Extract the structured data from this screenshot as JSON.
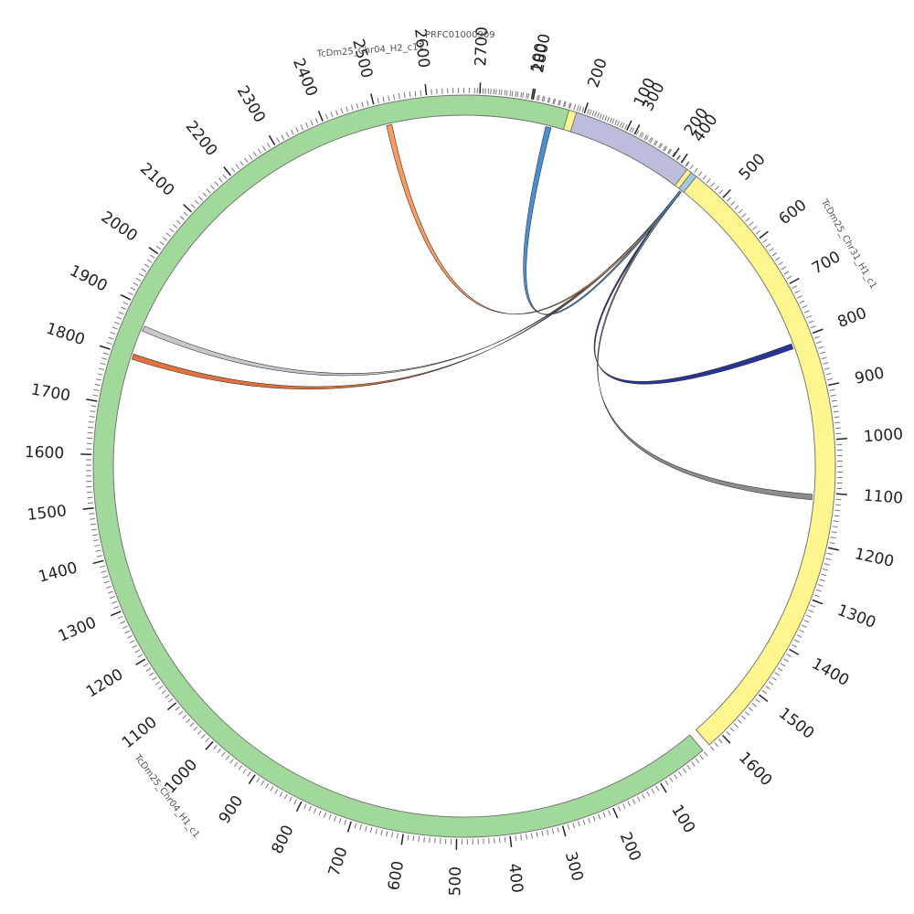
{
  "chart_data": {
    "type": "chord",
    "segments": [
      {
        "id": "chr31",
        "name": "TcDm25_Chr31_H1_c1",
        "color": "#fff68f",
        "length": 1630,
        "ticks": [
          "100",
          "200",
          "300",
          "400",
          "500",
          "600",
          "700",
          "800",
          "900",
          "1000",
          "1100",
          "1200",
          "1300",
          "1400",
          "1500",
          "1600"
        ]
      },
      {
        "id": "chr04h1",
        "name": "TcDm25_Chr04_H1_c1",
        "color": "#a1d99b",
        "length": 2870,
        "ticks": [
          "100",
          "200",
          "300",
          "400",
          "500",
          "600",
          "700",
          "800",
          "900",
          "1000",
          "1100",
          "1200",
          "1300",
          "1400",
          "1500",
          "1600",
          "1700",
          "1800",
          "1900",
          "2000",
          "2100",
          "2200",
          "2300",
          "2400",
          "2500",
          "2600",
          "2700",
          "2800"
        ]
      },
      {
        "id": "chr04h2",
        "name": "TcDm25_Chr04_H2_c11",
        "color": "#bcbddc",
        "length": 235,
        "ticks": [
          "100",
          "200"
        ]
      },
      {
        "id": "prfc",
        "name": "PRFC01000909",
        "color": "#9ecae1",
        "length": 12,
        "ticks": []
      }
    ],
    "links": [
      {
        "from": "prfc",
        "to": "chr31",
        "position": 810,
        "color": "#283593"
      },
      {
        "from": "prfc",
        "to": "chr31",
        "position": 1110,
        "color": "#8c8c8c"
      },
      {
        "from": "prfc",
        "to": "chr04h1",
        "position": 1860,
        "color": "#c8c8c8"
      },
      {
        "from": "prfc",
        "to": "chr04h1",
        "position": 1800,
        "color": "#e4703b"
      },
      {
        "from": "prfc",
        "to": "chr04h1",
        "position": 2520,
        "color": "#fd9b5e"
      },
      {
        "from": "prfc",
        "to": "chr04h1",
        "position": 2840,
        "color": "#4a90d0"
      }
    ]
  }
}
